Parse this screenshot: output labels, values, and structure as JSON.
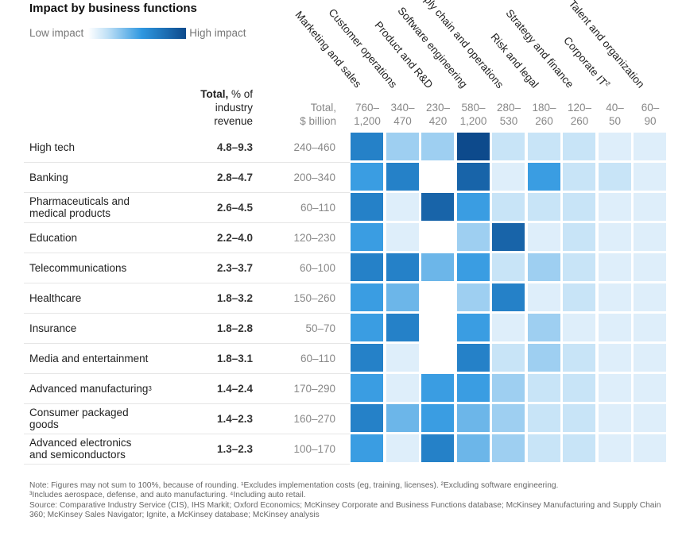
{
  "chart_data": {
    "type": "heatmap",
    "title": "Impact by business functions",
    "legend": {
      "low_label": "Low impact",
      "high_label": "High impact",
      "colors": [
        "#ffffff",
        "#2e97e0",
        "#0d4a8c"
      ]
    },
    "header": {
      "total_pct_bold": "Total,",
      "total_pct_rest": " % of",
      "total_pct_line2": "industry",
      "total_pct_line3": "revenue",
      "total_usd_line1": "Total,",
      "total_usd_line2": "$ billion"
    },
    "columns": [
      {
        "label": "Marketing and sales",
        "range_1": "760–",
        "range_2": "1,200"
      },
      {
        "label": "Customer operations",
        "range_1": "340–",
        "range_2": "470"
      },
      {
        "label": "Product and R&D",
        "range_1": "230–",
        "range_2": "420"
      },
      {
        "label": "Software engineering",
        "range_1": "580–",
        "range_2": "1,200"
      },
      {
        "label": "Supply chain and operations",
        "range_1": "280–",
        "range_2": "530"
      },
      {
        "label": "Risk and legal",
        "range_1": "180–",
        "range_2": "260"
      },
      {
        "label": "Strategy and finance",
        "range_1": "120–",
        "range_2": "260"
      },
      {
        "label": "Corporate IT",
        "sup": "2",
        "range_1": "40–",
        "range_2": "50"
      },
      {
        "label": "Talent and organization",
        "range_1": "60–",
        "range_2": "90"
      }
    ],
    "rows": [
      {
        "name": "High tech",
        "pct": "4.8–9.3",
        "usd": "240–460",
        "impact": [
          0.75,
          0.38,
          0.38,
          1.0,
          0.25,
          0.25,
          0.25,
          0.12,
          0.12
        ]
      },
      {
        "name": "Banking",
        "pct": "2.8–4.7",
        "usd": "200–340",
        "impact": [
          0.62,
          0.75,
          0.0,
          0.88,
          0.12,
          0.62,
          0.25,
          0.25,
          0.12
        ]
      },
      {
        "name": "Pharmaceuticals and medical products",
        "pct": "2.6–4.5",
        "usd": "60–110",
        "impact": [
          0.75,
          0.12,
          0.88,
          0.62,
          0.25,
          0.25,
          0.25,
          0.12,
          0.12
        ]
      },
      {
        "name": "Education",
        "pct": "2.2–4.0",
        "usd": "120–230",
        "impact": [
          0.62,
          0.12,
          0.0,
          0.38,
          0.88,
          0.12,
          0.25,
          0.12,
          0.12
        ]
      },
      {
        "name": "Telecommunications",
        "pct": "2.3–3.7",
        "usd": "60–100",
        "impact": [
          0.75,
          0.75,
          0.5,
          0.62,
          0.25,
          0.38,
          0.25,
          0.12,
          0.12
        ]
      },
      {
        "name": "Healthcare",
        "pct": "1.8–3.2",
        "usd": "150–260",
        "impact": [
          0.62,
          0.5,
          0.0,
          0.38,
          0.75,
          0.12,
          0.25,
          0.12,
          0.12
        ]
      },
      {
        "name": "Insurance",
        "pct": "1.8–2.8",
        "usd": "50–70",
        "impact": [
          0.62,
          0.75,
          0.0,
          0.62,
          0.12,
          0.38,
          0.12,
          0.12,
          0.12
        ]
      },
      {
        "name": "Media and entertainment",
        "pct": "1.8–3.1",
        "usd": "60–110",
        "impact": [
          0.75,
          0.12,
          0.0,
          0.75,
          0.25,
          0.38,
          0.25,
          0.12,
          0.12
        ]
      },
      {
        "name": "Advanced manufacturing",
        "sup": "3",
        "pct": "1.4–2.4",
        "usd": "170–290",
        "impact": [
          0.62,
          0.12,
          0.62,
          0.62,
          0.38,
          0.25,
          0.25,
          0.12,
          0.12
        ]
      },
      {
        "name": "Consumer packaged goods",
        "pct": "1.4–2.3",
        "usd": "160–270",
        "impact": [
          0.75,
          0.5,
          0.62,
          0.5,
          0.38,
          0.25,
          0.25,
          0.12,
          0.12
        ]
      },
      {
        "name": "Advanced electronics and semiconductors",
        "pct": "1.3–2.3",
        "usd": "100–170",
        "impact": [
          0.62,
          0.12,
          0.75,
          0.5,
          0.38,
          0.25,
          0.25,
          0.12,
          0.12
        ]
      }
    ],
    "notes": {
      "line1": "Note: Figures may not sum to 100%, because of rounding. ¹Excludes implementation costs (eg, training, licenses). ²Excluding software engineering.",
      "line2": "³Includes aerospace, defense, and auto manufacturing. ⁴Including auto retail.",
      "source": "Source: Comparative Industry Service (CIS), IHS Markit; Oxford Economics; McKinsey Corporate and Business Functions database; McKinsey Manufacturing and Supply Chain 360; McKinsey Sales Navigator; Ignite, a McKinsey database; McKinsey analysis"
    }
  }
}
